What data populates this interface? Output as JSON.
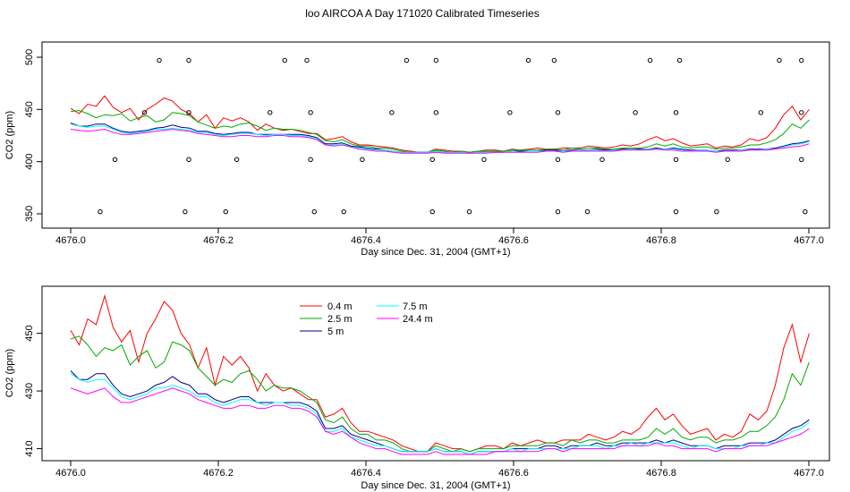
{
  "chart_data": [
    {
      "type": "scatter",
      "title": "loo AIRCOA A  Day 171020  Calibrated Timeseries",
      "xlabel": "Day since Dec. 31, 2004 (GMT+1)",
      "ylabel": "CO2 (ppm)",
      "xlim": [
        4676.0,
        4677.0
      ],
      "ylim": [
        350,
        500
      ],
      "xticks": [
        4676.0,
        4676.2,
        4676.4,
        4676.6,
        4676.8,
        4677.0
      ],
      "xtick_labels": [
        "4676.0",
        "4676.2",
        "4676.4",
        "4676.6",
        "4676.8",
        "4677.0"
      ],
      "yticks": [
        350,
        400,
        450,
        500
      ],
      "ytick_labels": [
        "350",
        "400",
        "450",
        "500"
      ],
      "grid": false,
      "series": [
        {
          "color": "#ff0000",
          "values": [
            451,
            446,
            455,
            453,
            463,
            452,
            447,
            451,
            440,
            450,
            455,
            461,
            458,
            450,
            446,
            438,
            445,
            432,
            442,
            439,
            442,
            438,
            430,
            436,
            432,
            430,
            431,
            429,
            427,
            427,
            421,
            422,
            424,
            419,
            416,
            416,
            415,
            414,
            413,
            411,
            410,
            409,
            409,
            412,
            411,
            410,
            410,
            409,
            410,
            411,
            411,
            410,
            412,
            411,
            412,
            413,
            412,
            412,
            413,
            413,
            413,
            415,
            414,
            413,
            414,
            416,
            415,
            417,
            421,
            424,
            420,
            422,
            418,
            415,
            416,
            417,
            413,
            415,
            414,
            416,
            422,
            420,
            423,
            432,
            445,
            453,
            440,
            450
          ]
        },
        {
          "color": "#00aa00",
          "values": [
            448,
            449,
            446,
            442,
            445,
            444,
            446,
            439,
            442,
            444,
            438,
            440,
            447,
            446,
            444,
            438,
            435,
            432,
            434,
            433,
            436,
            437,
            434,
            430,
            432,
            431,
            431,
            430,
            428,
            426,
            420,
            419,
            421,
            417,
            415,
            415,
            413,
            413,
            412,
            410,
            409,
            409,
            409,
            411,
            410,
            409,
            410,
            409,
            410,
            410,
            410,
            410,
            411,
            411,
            411,
            411,
            412,
            412,
            411,
            413,
            412,
            413,
            413,
            412,
            412,
            413,
            413,
            413,
            414,
            417,
            415,
            417,
            414,
            413,
            414,
            414,
            412,
            413,
            413,
            414,
            416,
            416,
            418,
            421,
            427,
            436,
            432,
            440
          ]
        },
        {
          "color": "#00008b",
          "values": [
            437,
            434,
            434,
            436,
            436,
            432,
            429,
            428,
            429,
            430,
            432,
            433,
            435,
            433,
            432,
            429,
            429,
            427,
            426,
            427,
            428,
            428,
            426,
            426,
            426,
            426,
            426,
            426,
            425,
            423,
            417,
            417,
            418,
            415,
            414,
            413,
            412,
            411,
            410,
            409,
            409,
            409,
            409,
            410,
            409,
            409,
            409,
            408,
            409,
            409,
            409,
            409,
            410,
            410,
            410,
            410,
            411,
            411,
            410,
            411,
            411,
            411,
            412,
            411,
            411,
            412,
            412,
            412,
            412,
            413,
            412,
            413,
            412,
            411,
            411,
            411,
            410,
            411,
            411,
            411,
            412,
            412,
            412,
            413,
            415,
            417,
            418,
            420
          ]
        },
        {
          "color": "#00ffff",
          "values": [
            436,
            434,
            433,
            434,
            434,
            431,
            428,
            427,
            428,
            429,
            431,
            431,
            432,
            431,
            430,
            428,
            428,
            426,
            425,
            426,
            427,
            427,
            426,
            425,
            426,
            426,
            425,
            425,
            424,
            422,
            416,
            416,
            417,
            414,
            413,
            412,
            411,
            411,
            410,
            409,
            409,
            409,
            409,
            410,
            409,
            409,
            409,
            408,
            409,
            409,
            409,
            409,
            410,
            409,
            410,
            410,
            410,
            410,
            410,
            410,
            411,
            411,
            411,
            410,
            411,
            411,
            412,
            411,
            412,
            412,
            412,
            412,
            411,
            410,
            411,
            411,
            410,
            410,
            410,
            411,
            411,
            411,
            412,
            412,
            414,
            416,
            417,
            419
          ]
        },
        {
          "color": "#ff00ff",
          "values": [
            431,
            430,
            429,
            430,
            431,
            428,
            426,
            426,
            427,
            428,
            429,
            430,
            431,
            430,
            429,
            427,
            426,
            425,
            424,
            424,
            425,
            425,
            424,
            424,
            425,
            425,
            424,
            424,
            423,
            421,
            416,
            415,
            416,
            414,
            412,
            411,
            410,
            410,
            409,
            408,
            408,
            408,
            408,
            409,
            408,
            408,
            408,
            408,
            408,
            408,
            409,
            409,
            409,
            409,
            409,
            409,
            410,
            410,
            409,
            410,
            410,
            410,
            410,
            410,
            410,
            411,
            411,
            411,
            411,
            412,
            411,
            411,
            410,
            410,
            410,
            410,
            409,
            410,
            410,
            410,
            411,
            411,
            411,
            412,
            413,
            414,
            415,
            417
          ]
        }
      ],
      "x_step": 0.0115,
      "flagged_points": {
        "x": [
          4676.04,
          4676.06,
          4676.1,
          4676.12,
          4676.155,
          4676.16,
          4676.16,
          4676.16,
          4676.21,
          4676.225,
          4676.27,
          4676.29,
          4676.32,
          4676.325,
          4676.325,
          4676.33,
          4676.37,
          4676.395,
          4676.435,
          4676.455,
          4676.49,
          4676.49,
          4676.495,
          4676.495,
          4676.54,
          4676.56,
          4676.595,
          4676.62,
          4676.655,
          4676.66,
          4676.66,
          4676.66,
          4676.7,
          4676.72,
          4676.765,
          4676.785,
          4676.82,
          4676.82,
          4676.82,
          4676.825,
          4676.875,
          4676.89,
          4676.935,
          4676.96,
          4676.99,
          4676.99,
          4676.99,
          4676.995
        ],
        "y": [
          352,
          402,
          447,
          497,
          352,
          402,
          447,
          497,
          352,
          402,
          447,
          497,
          497,
          447,
          402,
          352,
          352,
          402,
          447,
          497,
          352,
          402,
          447,
          497,
          352,
          402,
          447,
          497,
          497,
          447,
          402,
          352,
          352,
          402,
          447,
          497,
          352,
          402,
          447,
          497,
          352,
          402,
          447,
          497,
          497,
          447,
          402,
          352
        ]
      }
    },
    {
      "type": "line",
      "title": "",
      "xlabel": "Day since Dec. 31, 2004 (GMT+1)",
      "ylabel": "CO2 (ppm)",
      "xlim": [
        4676.0,
        4677.0
      ],
      "ylim": [
        408,
        466
      ],
      "xticks": [
        4676.0,
        4676.2,
        4676.4,
        4676.6,
        4676.8,
        4677.0
      ],
      "xtick_labels": [
        "4676.0",
        "4676.2",
        "4676.4",
        "4676.6",
        "4676.8",
        "4677.0"
      ],
      "yticks": [
        410,
        430,
        450
      ],
      "ytick_labels": [
        "410",
        "430",
        "450"
      ],
      "grid": false,
      "legend_position": "top-left",
      "series": [
        {
          "name": "0.4 m",
          "color": "#ff0000",
          "values": [
            451,
            446,
            455,
            453,
            463,
            452,
            447,
            451,
            440,
            450,
            455,
            461,
            458,
            450,
            446,
            438,
            445,
            432,
            442,
            439,
            442,
            438,
            430,
            436,
            432,
            430,
            431,
            429,
            427,
            427,
            421,
            422,
            424,
            419,
            416,
            416,
            415,
            414,
            413,
            411,
            410,
            409,
            409,
            412,
            411,
            410,
            410,
            409,
            410,
            411,
            411,
            410,
            412,
            411,
            412,
            413,
            412,
            412,
            413,
            413,
            413,
            415,
            414,
            413,
            414,
            416,
            415,
            417,
            421,
            424,
            420,
            422,
            418,
            415,
            416,
            417,
            413,
            415,
            414,
            416,
            422,
            420,
            423,
            432,
            445,
            453,
            440,
            450
          ]
        },
        {
          "name": "2.5 m",
          "color": "#00aa00",
          "values": [
            448,
            449,
            446,
            442,
            445,
            444,
            446,
            439,
            442,
            444,
            438,
            440,
            447,
            446,
            444,
            438,
            435,
            432,
            434,
            433,
            436,
            437,
            434,
            430,
            432,
            431,
            431,
            430,
            428,
            426,
            420,
            419,
            421,
            417,
            415,
            415,
            413,
            413,
            412,
            410,
            409,
            409,
            409,
            411,
            410,
            409,
            410,
            409,
            410,
            410,
            410,
            410,
            411,
            411,
            411,
            411,
            412,
            412,
            411,
            413,
            412,
            413,
            413,
            412,
            412,
            413,
            413,
            413,
            414,
            417,
            415,
            417,
            414,
            413,
            414,
            414,
            412,
            413,
            413,
            414,
            416,
            416,
            418,
            421,
            427,
            436,
            432,
            440
          ]
        },
        {
          "name": "5 m",
          "color": "#00008b",
          "values": [
            437,
            434,
            434,
            436,
            436,
            432,
            429,
            428,
            429,
            430,
            432,
            433,
            435,
            433,
            432,
            429,
            429,
            427,
            426,
            427,
            428,
            428,
            426,
            426,
            426,
            426,
            426,
            426,
            425,
            423,
            417,
            417,
            418,
            415,
            414,
            413,
            412,
            411,
            410,
            409,
            409,
            409,
            409,
            410,
            409,
            409,
            409,
            408,
            409,
            409,
            409,
            409,
            410,
            410,
            410,
            410,
            411,
            411,
            410,
            411,
            411,
            411,
            412,
            411,
            411,
            412,
            412,
            412,
            412,
            413,
            412,
            413,
            412,
            411,
            411,
            411,
            410,
            411,
            411,
            411,
            412,
            412,
            412,
            413,
            415,
            417,
            418,
            420
          ]
        },
        {
          "name": "7.5 m",
          "color": "#00ffff",
          "values": [
            436,
            434,
            433,
            434,
            434,
            431,
            428,
            427,
            428,
            429,
            431,
            431,
            432,
            431,
            430,
            428,
            428,
            426,
            425,
            426,
            427,
            427,
            426,
            425,
            426,
            426,
            425,
            425,
            424,
            422,
            416,
            416,
            417,
            414,
            413,
            412,
            411,
            411,
            410,
            409,
            409,
            409,
            409,
            410,
            409,
            409,
            409,
            408,
            409,
            409,
            409,
            409,
            410,
            409,
            410,
            410,
            410,
            410,
            410,
            410,
            411,
            411,
            411,
            410,
            411,
            411,
            412,
            411,
            412,
            412,
            412,
            412,
            411,
            410,
            411,
            411,
            410,
            410,
            410,
            411,
            411,
            411,
            412,
            412,
            414,
            416,
            417,
            419
          ]
        },
        {
          "name": "24.4 m",
          "color": "#ff00ff",
          "values": [
            431,
            430,
            429,
            430,
            431,
            428,
            426,
            426,
            427,
            428,
            429,
            430,
            431,
            430,
            429,
            427,
            426,
            425,
            424,
            424,
            425,
            425,
            424,
            424,
            425,
            425,
            424,
            424,
            423,
            421,
            416,
            415,
            416,
            414,
            412,
            411,
            410,
            410,
            409,
            408,
            408,
            408,
            408,
            409,
            408,
            408,
            408,
            408,
            408,
            408,
            409,
            409,
            409,
            409,
            409,
            409,
            410,
            410,
            409,
            410,
            410,
            410,
            410,
            410,
            410,
            411,
            411,
            411,
            411,
            412,
            411,
            411,
            410,
            410,
            410,
            410,
            409,
            410,
            410,
            410,
            411,
            411,
            411,
            412,
            413,
            414,
            415,
            417
          ]
        }
      ],
      "x_step": 0.0115
    }
  ]
}
